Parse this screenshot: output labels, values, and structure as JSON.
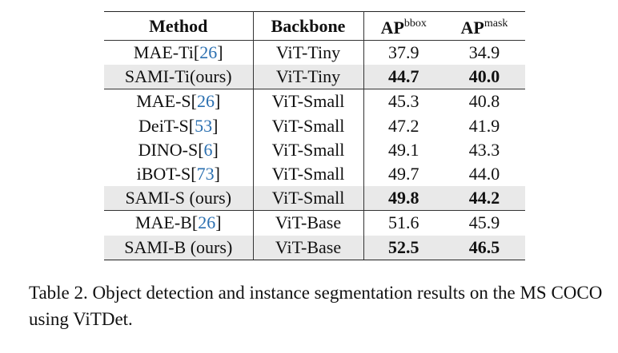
{
  "table": {
    "headers": {
      "method": "Method",
      "backbone": "Backbone",
      "ap_bbox": {
        "base": "AP",
        "sup": "bbox"
      },
      "ap_mask": {
        "base": "AP",
        "sup": "mask"
      }
    },
    "rows": [
      {
        "method": "MAE-Ti",
        "cite": "26",
        "backbone": "ViT-Tiny",
        "ap_bbox": "37.9",
        "ap_mask": "34.9"
      },
      {
        "method": "SAMI-Ti(ours)",
        "cite": "",
        "backbone": "ViT-Tiny",
        "ap_bbox": "44.7",
        "ap_mask": "40.0"
      },
      {
        "method": "MAE-S",
        "cite": "26",
        "backbone": "ViT-Small",
        "ap_bbox": "45.3",
        "ap_mask": "40.8"
      },
      {
        "method": "DeiT-S",
        "cite": "53",
        "backbone": "ViT-Small",
        "ap_bbox": "47.2",
        "ap_mask": "41.9"
      },
      {
        "method": "DINO-S",
        "cite": "6",
        "backbone": "ViT-Small",
        "ap_bbox": "49.1",
        "ap_mask": "43.3"
      },
      {
        "method": "iBOT-S",
        "cite": "73",
        "backbone": "ViT-Small",
        "ap_bbox": "49.7",
        "ap_mask": "44.0"
      },
      {
        "method": "SAMI-S (ours)",
        "cite": "",
        "backbone": "ViT-Small",
        "ap_bbox": "49.8",
        "ap_mask": "44.2"
      },
      {
        "method": "MAE-B",
        "cite": "26",
        "backbone": "ViT-Base",
        "ap_bbox": "51.6",
        "ap_mask": "45.9"
      },
      {
        "method": "SAMI-B (ours)",
        "cite": "",
        "backbone": "ViT-Base",
        "ap_bbox": "52.5",
        "ap_mask": "46.5"
      }
    ]
  },
  "caption": "Table 2. Object detection and instance segmentation results on the MS COCO using ViTDet.",
  "colors": {
    "highlight_row": "#e9e9e9",
    "citation": "#2a6fb0"
  }
}
